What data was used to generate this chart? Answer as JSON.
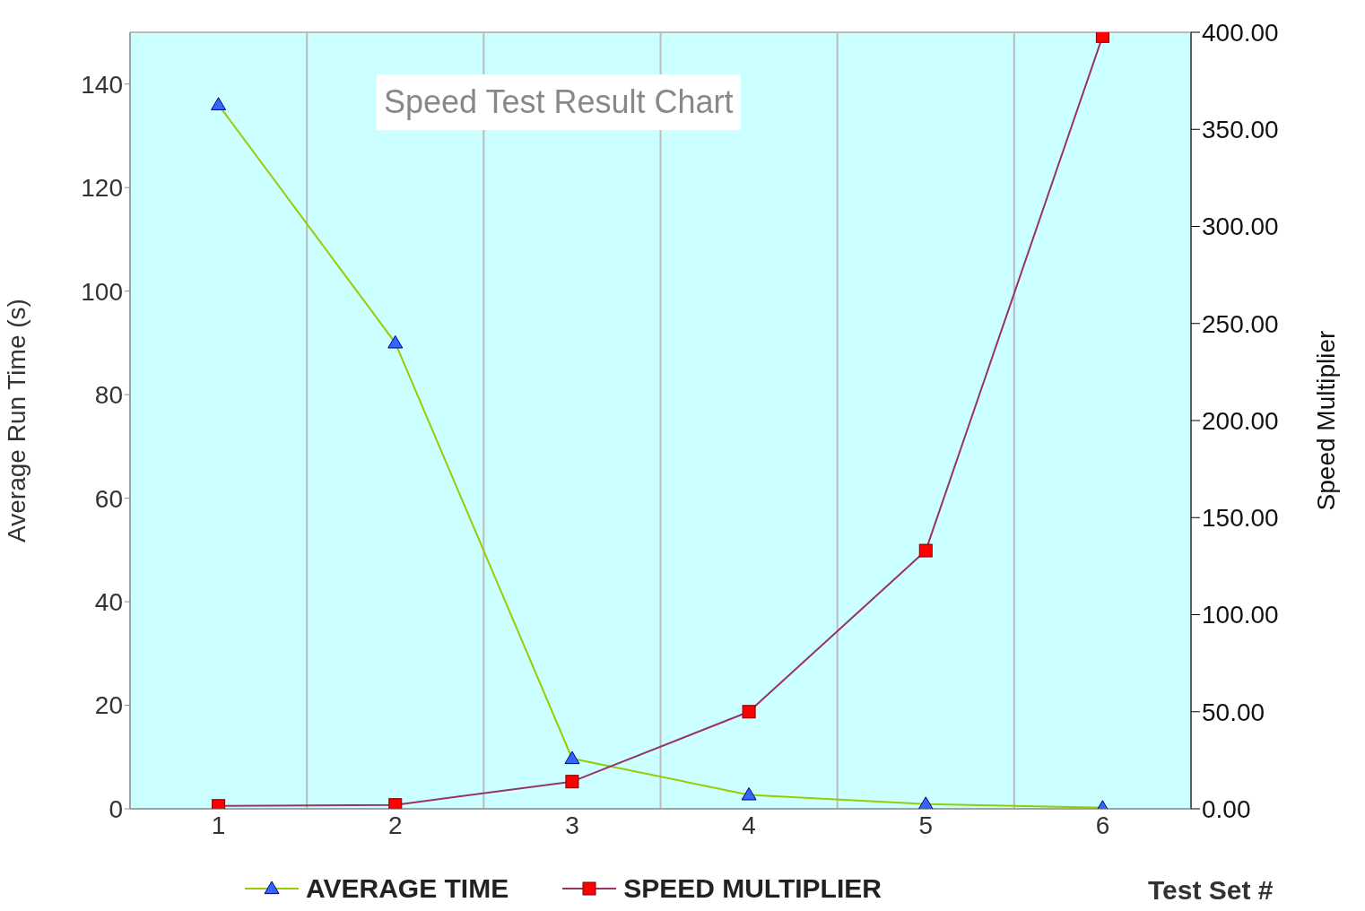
{
  "chart_data": {
    "type": "line",
    "title": "Speed Test Result Chart",
    "xlabel": "Test Set #",
    "ylabel": "Average Run Time (s)",
    "y2label": "Speed Multiplier",
    "categories": [
      "1",
      "2",
      "3",
      "4",
      "5",
      "6"
    ],
    "series": [
      {
        "name": "AVERAGE TIME",
        "color": "#99cc00",
        "marker": "triangle",
        "values": [
          136,
          90,
          9.7,
          2.7,
          0.9,
          0.2
        ]
      },
      {
        "name": "SPEED MULTIPLIER",
        "color": "#993366",
        "marker": "square",
        "axis": "y2",
        "values": [
          1.5,
          2,
          14,
          50,
          133,
          398
        ]
      }
    ],
    "ylim": [
      0,
      150
    ],
    "yticks": [
      0,
      20,
      40,
      60,
      80,
      100,
      120,
      140
    ],
    "y2lim": [
      0,
      400
    ],
    "y2ticks": [
      {
        "value": 0,
        "label": "0.00"
      },
      {
        "value": 50,
        "label": "50.00"
      },
      {
        "value": 100,
        "label": "100.00"
      },
      {
        "value": 150,
        "label": "150.00"
      },
      {
        "value": 200,
        "label": "200.00"
      },
      {
        "value": 250,
        "label": "250.00"
      },
      {
        "value": 300,
        "label": "300.00"
      },
      {
        "value": 350,
        "label": "350.00"
      },
      {
        "value": 400,
        "label": "400.00"
      }
    ],
    "grid": true,
    "legend": "bottom"
  }
}
